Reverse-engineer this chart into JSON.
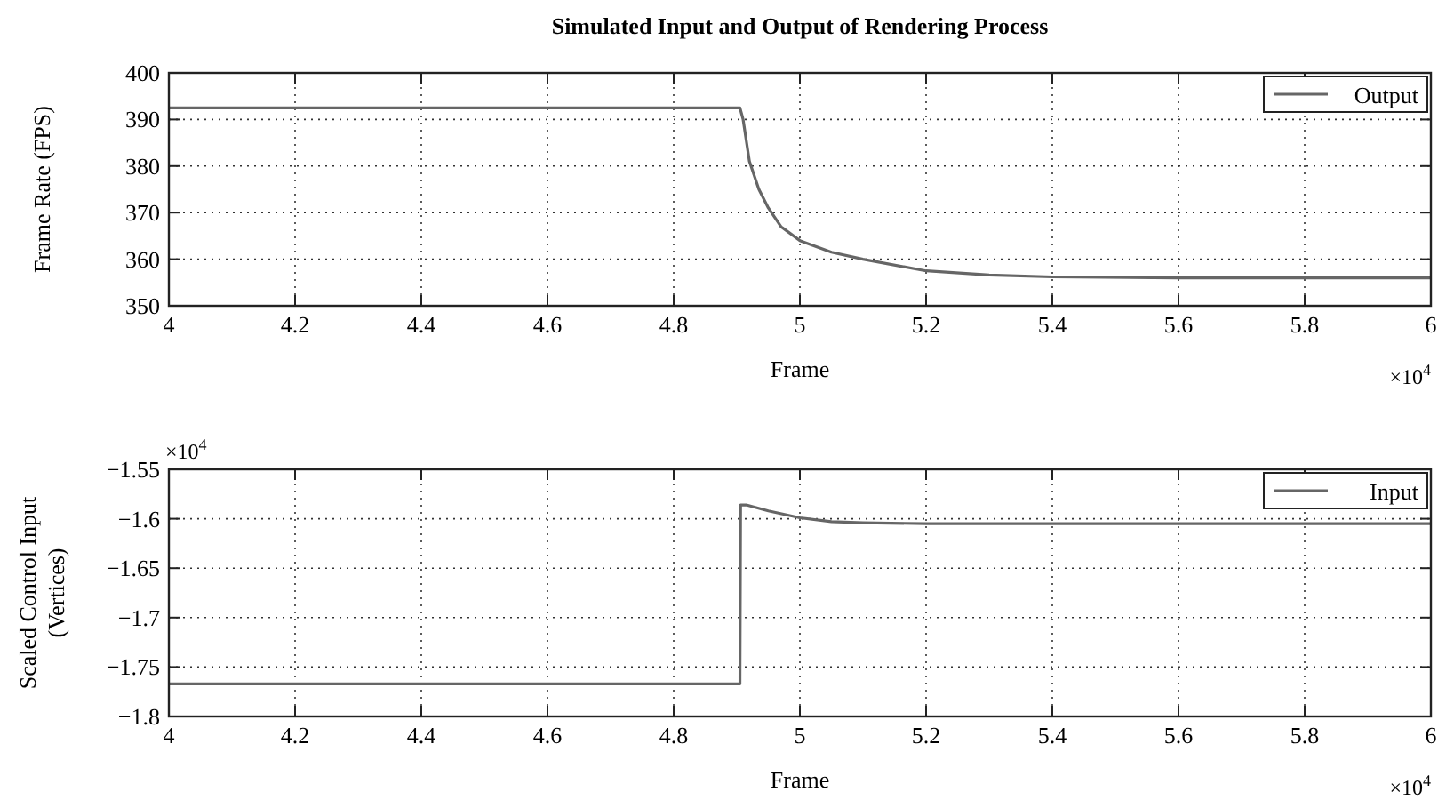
{
  "chart_data": [
    {
      "type": "line",
      "title": "Simulated Input and Output of Rendering Process",
      "xlabel": "Frame",
      "ylabel": "Frame Rate (FPS)",
      "annotations": [
        "×10$^{4}$"
      ],
      "x": [
        4,
        4.905,
        4.91,
        4.92,
        4.935,
        4.95,
        4.97,
        5.0,
        5.05,
        5.1,
        5.2,
        5.3,
        5.4,
        5.6,
        5.8,
        6
      ],
      "series": [
        {
          "name": "Output",
          "color": "#666666",
          "values": [
            392.5,
            392.5,
            390,
            381,
            375,
            371,
            367,
            364,
            361.5,
            360,
            357.5,
            356.6,
            356.2,
            356,
            356,
            356
          ]
        }
      ],
      "xlim": [
        4,
        6
      ],
      "xticks": [
        4,
        4.2,
        4.4,
        4.6,
        4.8,
        5,
        5.2,
        5.4,
        5.6,
        5.8,
        6
      ],
      "ylim": [
        350,
        400
      ],
      "yticks": [
        350,
        360,
        370,
        380,
        390,
        400
      ],
      "grid": true,
      "legend": "top right",
      "line_style": "solid",
      "marker": "none"
    },
    {
      "type": "line",
      "xlabel": "Frame",
      "ylabel": "Scaled Control Input (Vertices)",
      "annotations": [
        "×10$^{4}$",
        "×10$^{4}$"
      ],
      "x": [
        4,
        4.905,
        4.906,
        4.915,
        4.95,
        5.0,
        5.05,
        5.1,
        5.2,
        5.4,
        6
      ],
      "series": [
        {
          "name": "Input",
          "color": "#666666",
          "values": [
            -1.767,
            -1.767,
            -1.586,
            -1.586,
            -1.592,
            -1.599,
            -1.603,
            -1.604,
            -1.605,
            -1.605,
            -1.605
          ]
        }
      ],
      "xlim": [
        4,
        6
      ],
      "xticks": [
        4,
        4.2,
        4.4,
        4.6,
        4.8,
        5,
        5.2,
        5.4,
        5.6,
        5.8,
        6
      ],
      "ylim": [
        -1.8,
        -1.55
      ],
      "yticks": [
        -1.8,
        -1.75,
        -1.7,
        -1.65,
        -1.6,
        -1.55
      ],
      "grid": true,
      "legend": "top right",
      "line_style": "solid",
      "marker": "none"
    }
  ]
}
